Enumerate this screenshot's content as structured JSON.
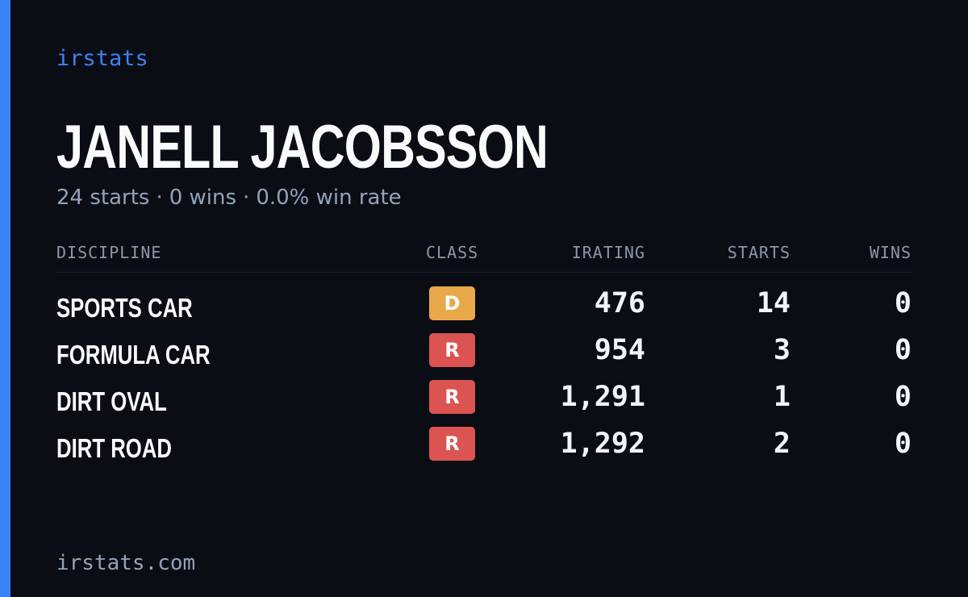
{
  "brand": "irstats",
  "driver": {
    "name": "JANELL JACOBSSON",
    "starts": "24 starts",
    "wins": "0 wins",
    "win_rate": "0.0% win rate",
    "separator": "·"
  },
  "table": {
    "headers": {
      "discipline": "DISCIPLINE",
      "class": "CLASS",
      "irating": "IRATING",
      "starts": "STARTS",
      "wins": "WINS"
    },
    "rows": [
      {
        "discipline": "SPORTS CAR",
        "class": "D",
        "class_color": "#e9a94a",
        "irating": "476",
        "starts": "14",
        "wins": "0"
      },
      {
        "discipline": "FORMULA CAR",
        "class": "R",
        "class_color": "#dc5452",
        "irating": "954",
        "starts": "3",
        "wins": "0"
      },
      {
        "discipline": "DIRT OVAL",
        "class": "R",
        "class_color": "#dc5452",
        "irating": "1,291",
        "starts": "1",
        "wins": "0"
      },
      {
        "discipline": "DIRT ROAD",
        "class": "R",
        "class_color": "#dc5452",
        "irating": "1,292",
        "starts": "2",
        "wins": "0"
      }
    ]
  },
  "footer": {
    "url": "irstats.com"
  },
  "colors": {
    "accent": "#3b82f6",
    "background": "#0b0d14"
  }
}
